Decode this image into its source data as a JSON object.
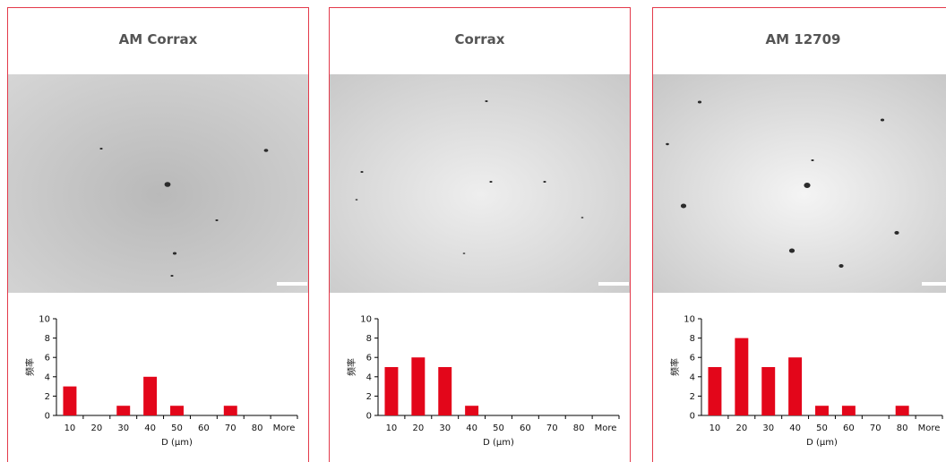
{
  "colors": {
    "border": "#e33a4b",
    "bar": "#e3061a",
    "title": "#555555"
  },
  "panels": [
    {
      "title": "AM Corrax",
      "micrograph": "optical micrograph with sparse small inclusions and scale bar",
      "chart_data": {
        "type": "bar",
        "categories": [
          "10",
          "20",
          "30",
          "40",
          "50",
          "60",
          "70",
          "80",
          "More"
        ],
        "values": [
          3,
          0,
          1,
          4,
          1,
          0,
          1,
          0,
          0
        ],
        "xlabel": "D (μm)",
        "ylabel": "频率",
        "ylim": [
          0,
          10
        ],
        "yticks": [
          "0",
          "2",
          "4",
          "6",
          "8",
          "10"
        ],
        "grid": false
      }
    },
    {
      "title": "Corrax",
      "micrograph": "optical micrograph with sparse small inclusions and scale bar",
      "chart_data": {
        "type": "bar",
        "categories": [
          "10",
          "20",
          "30",
          "40",
          "50",
          "60",
          "70",
          "80",
          "More"
        ],
        "values": [
          5,
          6,
          5,
          1,
          0,
          0,
          0,
          0,
          0
        ],
        "xlabel": "D (μm)",
        "ylabel": "频率",
        "ylim": [
          0,
          10
        ],
        "yticks": [
          "0",
          "2",
          "4",
          "6",
          "8",
          "10"
        ],
        "grid": false
      }
    },
    {
      "title": "AM 12709",
      "micrograph": "optical micrograph with scattered dark inclusions and scale bar",
      "chart_data": {
        "type": "bar",
        "categories": [
          "10",
          "20",
          "30",
          "40",
          "50",
          "60",
          "70",
          "80",
          "More"
        ],
        "values": [
          5,
          8,
          5,
          6,
          1,
          1,
          0,
          1,
          0
        ],
        "xlabel": "D (μm)",
        "ylabel": "频率",
        "ylim": [
          0,
          10
        ],
        "yticks": [
          "0",
          "2",
          "4",
          "6",
          "8",
          "10"
        ],
        "grid": false
      }
    }
  ]
}
